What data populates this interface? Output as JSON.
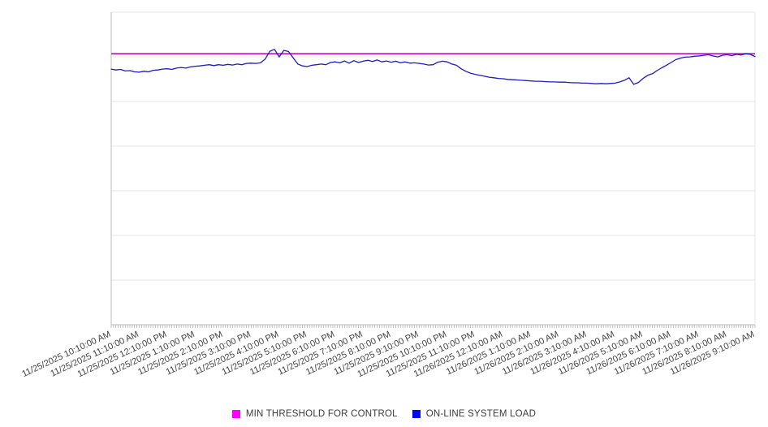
{
  "chart_data": {
    "type": "line",
    "title": "",
    "xlabel": "",
    "ylabel": "",
    "y_axis_labels_visible": false,
    "ylim": [
      0,
      100
    ],
    "grid": "horizontal",
    "gridline_count": 8,
    "x_label_rotation_deg": -25,
    "x_minor_tick_interval_minutes": 5,
    "sample_interval_minutes": 10,
    "x_labels": [
      "11/25/2025 10:10:00 AM",
      "11/25/2025 11:10:00 AM",
      "11/25/2025 12:10:00 PM",
      "11/25/2025 1:10:00 PM",
      "11/25/2025 2:10:00 PM",
      "11/25/2025 3:10:00 PM",
      "11/25/2025 4:10:00 PM",
      "11/25/2025 5:10:00 PM",
      "11/25/2025 6:10:00 PM",
      "11/25/2025 7:10:00 PM",
      "11/25/2025 8:10:00 PM",
      "11/25/2025 9:10:00 PM",
      "11/25/2025 10:10:00 PM",
      "11/25/2025 11:10:00 PM",
      "11/26/2025 12:10:00 AM",
      "11/26/2025 1:10:00 AM",
      "11/26/2025 2:10:00 AM",
      "11/26/2025 3:10:00 AM",
      "11/26/2025 4:10:00 AM",
      "11/26/2025 5:10:00 AM",
      "11/26/2025 6:10:00 AM",
      "11/26/2025 7:10:00 AM",
      "11/26/2025 8:10:00 AM",
      "11/26/2025 9:10:00 AM"
    ],
    "series": [
      {
        "name": "MIN THRESHOLD FOR CONTROL",
        "type": "constant-threshold",
        "value": 86.7,
        "line_color": "#cc22cc"
      },
      {
        "name": "ON-LINE SYSTEM LOAD",
        "type": "line",
        "line_color": "#1c1cc4",
        "values": [
          81.8,
          81.5,
          81.7,
          81.2,
          81.3,
          80.9,
          80.8,
          81.1,
          80.9,
          81.4,
          81.5,
          81.8,
          81.9,
          81.7,
          82.1,
          82.3,
          82.1,
          82.5,
          82.7,
          82.8,
          83.0,
          83.2,
          82.9,
          83.2,
          83.0,
          83.3,
          83.1,
          83.4,
          83.2,
          83.6,
          83.7,
          83.6,
          83.8,
          85.0,
          87.5,
          88.1,
          85.7,
          87.8,
          87.4,
          85.4,
          83.4,
          82.8,
          82.6,
          83.0,
          83.2,
          83.4,
          83.2,
          83.9,
          84.1,
          83.8,
          84.4,
          83.7,
          84.5,
          83.9,
          84.3,
          84.6,
          84.2,
          84.7,
          84.1,
          84.4,
          84.0,
          84.3,
          83.8,
          84.1,
          83.7,
          83.8,
          83.6,
          83.4,
          83.1,
          83.2,
          84.0,
          84.3,
          84.1,
          83.4,
          83.0,
          81.9,
          81.1,
          80.5,
          80.1,
          79.8,
          79.5,
          79.2,
          79.0,
          78.8,
          78.7,
          78.5,
          78.4,
          78.3,
          78.2,
          78.1,
          78.0,
          77.9,
          77.9,
          77.8,
          77.7,
          77.7,
          77.6,
          77.6,
          77.5,
          77.4,
          77.4,
          77.3,
          77.3,
          77.2,
          77.1,
          77.2,
          77.1,
          77.2,
          77.3,
          77.7,
          78.2,
          79.0,
          76.9,
          77.5,
          78.8,
          79.8,
          80.3,
          81.3,
          82.2,
          83.0,
          83.9,
          84.8,
          85.3,
          85.6,
          85.7,
          85.9,
          86.0,
          86.2,
          86.4,
          86.0,
          85.7,
          86.2,
          86.4,
          86.1,
          86.5,
          86.3,
          86.7,
          86.5,
          85.8
        ]
      }
    ],
    "legend": {
      "position": "bottom-center",
      "items": [
        {
          "label": "MIN THRESHOLD FOR CONTROL",
          "swatch": "#ff00ff"
        },
        {
          "label": "ON-LINE SYSTEM LOAD",
          "swatch": "#0000ff"
        }
      ]
    }
  },
  "colors": {
    "background": "#ffffff",
    "gridline": "#e7e7e7",
    "axis_border": "#b9bcbc",
    "minor_tick": "#a8a8a8",
    "x_label_text": "#444444",
    "legend_text": "#3a3a3a",
    "threshold_line": "#cc22cc",
    "load_line": "#1c1cc4"
  }
}
